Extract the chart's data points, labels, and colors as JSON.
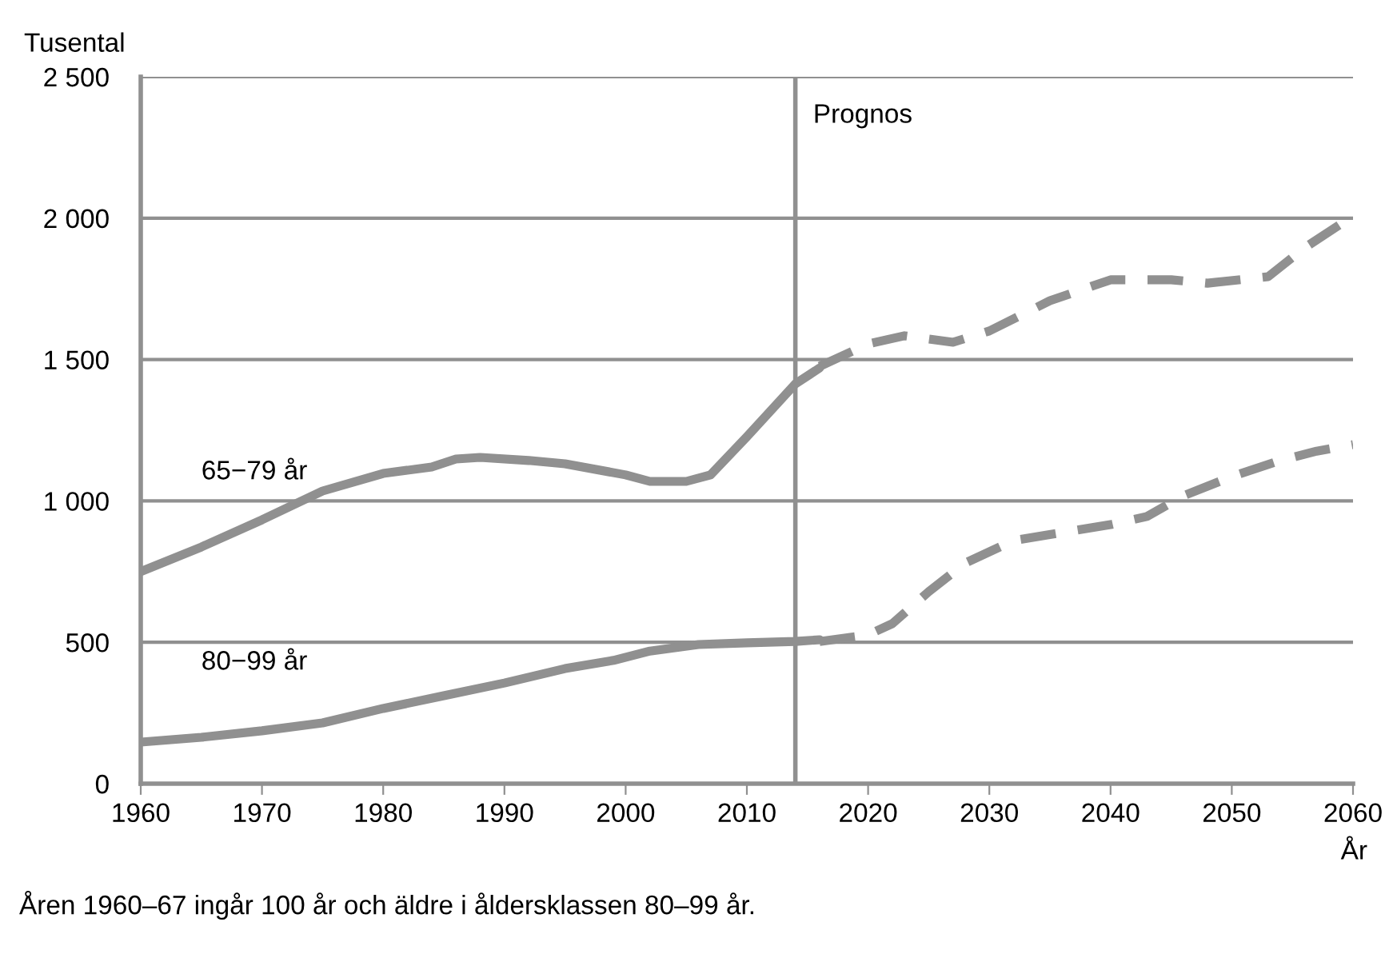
{
  "chart_data": {
    "type": "line",
    "xlabel": "År",
    "ylabel": "Tusental",
    "xlim": [
      1960,
      2060
    ],
    "xticks": [
      1960,
      1970,
      1980,
      1990,
      2000,
      2010,
      2020,
      2030,
      2040,
      2050,
      2060
    ],
    "ylim": [
      0,
      2500
    ],
    "yticks": [
      0,
      500,
      {
        "value": 1000,
        "label": "1 000"
      },
      {
        "value": 1500,
        "label": "1 500"
      },
      {
        "value": 2000,
        "label": "2 000"
      },
      {
        "value": 2500,
        "label": "2 500"
      }
    ],
    "grid": "y",
    "legend": false,
    "series": [
      {
        "name": "65−79 år",
        "color": "#909090",
        "line_style": "solid",
        "x": [
          1960,
          1965,
          1970,
          1975,
          1980,
          1984,
          1986,
          1988,
          1992,
          1995,
          2000,
          2002,
          2005,
          2007,
          2010,
          2014,
          2016
        ],
        "values": [
          750,
          837,
          933,
          1035,
          1097,
          1120,
          1148,
          1154,
          1143,
          1131,
          1092,
          1069,
          1069,
          1092,
          1227,
          1414,
          1470
        ]
      },
      {
        "color": "#909090",
        "line_style": "dashed",
        "x": [
          2016,
          2020,
          2023,
          2027,
          2030,
          2035,
          2040,
          2045,
          2048,
          2053,
          2056,
          2060
        ],
        "values": [
          1476,
          1555,
          1584,
          1561,
          1601,
          1708,
          1782,
          1782,
          1770,
          1793,
          1895,
          2008
        ]
      },
      {
        "name": "80−99 år",
        "color": "#909090",
        "line_style": "solid",
        "x": [
          1960,
          1965,
          1970,
          1975,
          1980,
          1985,
          1990,
          1995,
          1999,
          2002,
          2006,
          2010,
          2014,
          2016
        ],
        "values": [
          147,
          164,
          187,
          215,
          266,
          311,
          356,
          407,
          436,
          469,
          492,
          498,
          503,
          509
        ]
      },
      {
        "color": "#909090",
        "line_style": "dashed",
        "x": [
          2016,
          2020,
          2022,
          2025,
          2028,
          2032,
          2036,
          2040,
          2043,
          2046,
          2050,
          2054,
          2057,
          2060
        ],
        "values": [
          503,
          526,
          566,
          679,
          780,
          860,
          888,
          916,
          945,
          1018,
          1086,
          1143,
          1176,
          1199
        ]
      }
    ],
    "ref_lines": [
      {
        "axis": "x",
        "value": 2014,
        "label": "Prognos",
        "color": "#909090"
      }
    ],
    "annotations": [
      "Åren 1960–67 ingår 100 år och äldre i åldersklassen 80–99 år."
    ]
  }
}
